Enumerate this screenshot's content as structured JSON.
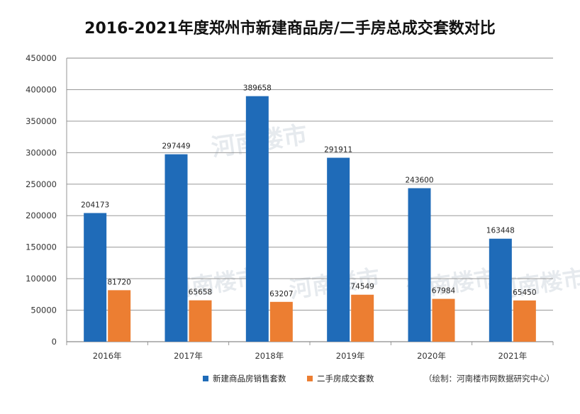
{
  "title": "2016-2021年度郑州市新建商品房/二手房总成交套数对比",
  "credit": "（绘制：河南楼市网数据研究中心）",
  "watermark": "河南楼市",
  "colors": {
    "series1": "#1f6bb8",
    "series2": "#ec7e32",
    "grid": "#8a8a8a"
  },
  "chart_data": {
    "type": "bar",
    "title": "2016-2021年度郑州市新建商品房/二手房总成交套数对比",
    "categories": [
      "2016年",
      "2017年",
      "2018年",
      "2019年",
      "2020年",
      "2021年"
    ],
    "series": [
      {
        "name": "新建商品房销售套数",
        "values": [
          204173,
          297449,
          389658,
          291911,
          243600,
          163448
        ]
      },
      {
        "name": "二手房成交套数",
        "values": [
          81720,
          65658,
          63207,
          74549,
          67984,
          65450
        ]
      }
    ],
    "ylim": [
      0,
      450000
    ],
    "yticks": [
      "0",
      "50000",
      "100000",
      "150000",
      "200000",
      "250000",
      "300000",
      "350000",
      "400000",
      "450000"
    ],
    "grid": true,
    "legend": "bottom"
  }
}
